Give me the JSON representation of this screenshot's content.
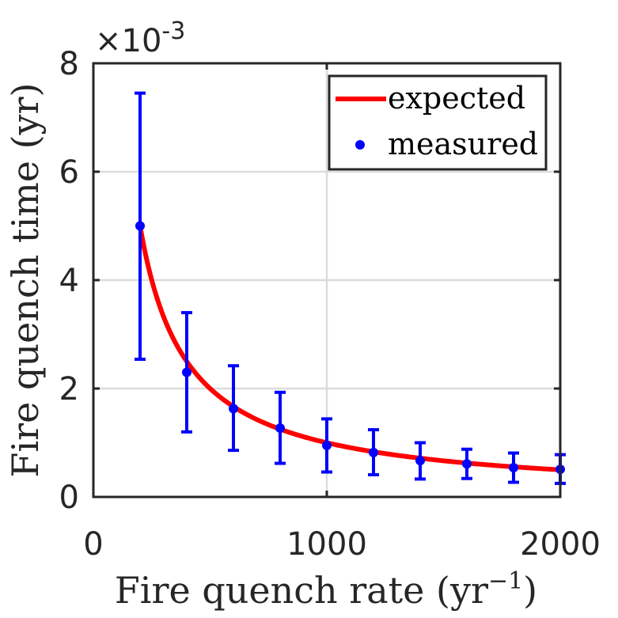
{
  "chart_data": {
    "type": "scatter",
    "xlabel": "Fire quench rate (yr",
    "xlabel_exponent": "−1",
    "xlabel_close": ")",
    "ylabel": "Fire quench time (yr)",
    "y_exponent_prefix": "×10",
    "y_exponent": "-3",
    "xlim": [
      0,
      2000
    ],
    "ylim": [
      0,
      8
    ],
    "xticks": [
      0,
      1000,
      2000
    ],
    "xtick_labels": [
      "0",
      "1000",
      "2000"
    ],
    "yticks": [
      0,
      2,
      4,
      6,
      8
    ],
    "ytick_labels": [
      "0",
      "2",
      "4",
      "6",
      "8"
    ],
    "grid": true,
    "legend_position": "top-right",
    "series": [
      {
        "name": "expected",
        "kind": "line",
        "color": "#ff0000",
        "function": "1/x",
        "x_range": [
          200,
          2000
        ]
      },
      {
        "name": "measured",
        "kind": "scatter-errorbar",
        "color": "#0000ff",
        "x": [
          200,
          400,
          600,
          800,
          1000,
          1200,
          1400,
          1600,
          1800,
          2000
        ],
        "y": [
          5.0,
          2.3,
          1.63,
          1.27,
          0.95,
          0.82,
          0.67,
          0.61,
          0.54,
          0.51
        ],
        "y_low": [
          2.54,
          1.2,
          0.86,
          0.62,
          0.46,
          0.41,
          0.33,
          0.34,
          0.27,
          0.25
        ],
        "y_high": [
          7.45,
          3.4,
          2.42,
          1.93,
          1.44,
          1.24,
          1.0,
          0.88,
          0.81,
          0.78
        ]
      }
    ]
  }
}
